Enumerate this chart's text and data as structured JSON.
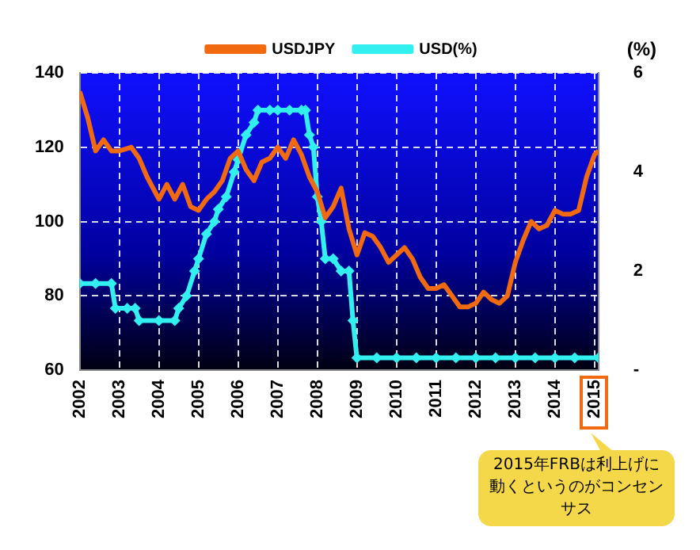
{
  "chart_data": {
    "type": "line",
    "xlim": [
      2002,
      2015.1
    ],
    "xticks": [
      2002,
      2003,
      2004,
      2005,
      2006,
      2007,
      2008,
      2009,
      2010,
      2011,
      2012,
      2013,
      2014,
      2015
    ],
    "ylim": [
      60,
      140
    ],
    "yticks": [
      60,
      80,
      100,
      120,
      140
    ],
    "y2label": "(%)",
    "y2lim": [
      0,
      6
    ],
    "y2ticks": [
      {
        "value": 0,
        "label": "-"
      },
      2,
      4,
      6
    ],
    "grid": true,
    "legend": "top",
    "line_style": "solid",
    "series": [
      {
        "name": "USDJPY",
        "color": "#f26a10",
        "marker": "none",
        "x": [
          2002.0,
          2002.2,
          2002.4,
          2002.6,
          2002.8,
          2003.0,
          2003.3,
          2003.5,
          2003.7,
          2003.9,
          2004.0,
          2004.2,
          2004.4,
          2004.6,
          2004.8,
          2005.0,
          2005.2,
          2005.4,
          2005.6,
          2005.8,
          2006.0,
          2006.2,
          2006.4,
          2006.6,
          2006.8,
          2007.0,
          2007.2,
          2007.4,
          2007.6,
          2007.8,
          2008.0,
          2008.2,
          2008.4,
          2008.6,
          2008.8,
          2009.0,
          2009.2,
          2009.4,
          2009.6,
          2009.8,
          2010.0,
          2010.2,
          2010.4,
          2010.6,
          2010.8,
          2011.0,
          2011.2,
          2011.4,
          2011.6,
          2011.8,
          2012.0,
          2012.2,
          2012.4,
          2012.6,
          2012.8,
          2013.0,
          2013.2,
          2013.4,
          2013.6,
          2013.8,
          2014.0,
          2014.2,
          2014.4,
          2014.6,
          2014.8,
          2015.0,
          2015.1
        ],
        "values": [
          135,
          128,
          119,
          122,
          119,
          119,
          120,
          117,
          112,
          108,
          106,
          110,
          106,
          110,
          104,
          103,
          106,
          108,
          111,
          117,
          119,
          114,
          111,
          116,
          117,
          120,
          117,
          122,
          118,
          112,
          108,
          101,
          104,
          109,
          98,
          91,
          97,
          96,
          93,
          89,
          91,
          93,
          90,
          85,
          82,
          82,
          83,
          80,
          77,
          77,
          78,
          81,
          79,
          78,
          80,
          89,
          95,
          100,
          98,
          99,
          103,
          102,
          102,
          103,
          112,
          118,
          119
        ]
      },
      {
        "name": "USD(%)",
        "color": "#33f0f0",
        "axis": "y2",
        "marker": "diamond",
        "x": [
          2002.0,
          2002.4,
          2002.8,
          2002.9,
          2003.2,
          2003.4,
          2003.5,
          2004.0,
          2004.4,
          2004.5,
          2004.7,
          2004.9,
          2005.0,
          2005.2,
          2005.4,
          2005.5,
          2005.7,
          2005.9,
          2006.0,
          2006.2,
          2006.4,
          2006.5,
          2006.8,
          2007.0,
          2007.3,
          2007.6,
          2007.7,
          2007.8,
          2007.9,
          2008.0,
          2008.1,
          2008.2,
          2008.4,
          2008.6,
          2008.8,
          2008.9,
          2009.0,
          2009.5,
          2010.0,
          2010.5,
          2011.0,
          2011.5,
          2012.0,
          2012.5,
          2013.0,
          2013.5,
          2014.0,
          2014.5,
          2015.1
        ],
        "values": [
          1.75,
          1.75,
          1.75,
          1.25,
          1.25,
          1.25,
          1.0,
          1.0,
          1.0,
          1.25,
          1.5,
          2.0,
          2.25,
          2.75,
          3.0,
          3.25,
          3.5,
          4.0,
          4.25,
          4.75,
          5.0,
          5.25,
          5.25,
          5.25,
          5.25,
          5.25,
          5.25,
          4.75,
          4.5,
          3.5,
          3.0,
          2.25,
          2.25,
          2.0,
          2.0,
          1.0,
          0.25,
          0.25,
          0.25,
          0.25,
          0.25,
          0.25,
          0.25,
          0.25,
          0.25,
          0.25,
          0.25,
          0.25,
          0.25
        ]
      }
    ],
    "annotations": [
      "2015年FRBは利上げに動くというのがコンセンサス"
    ]
  }
}
